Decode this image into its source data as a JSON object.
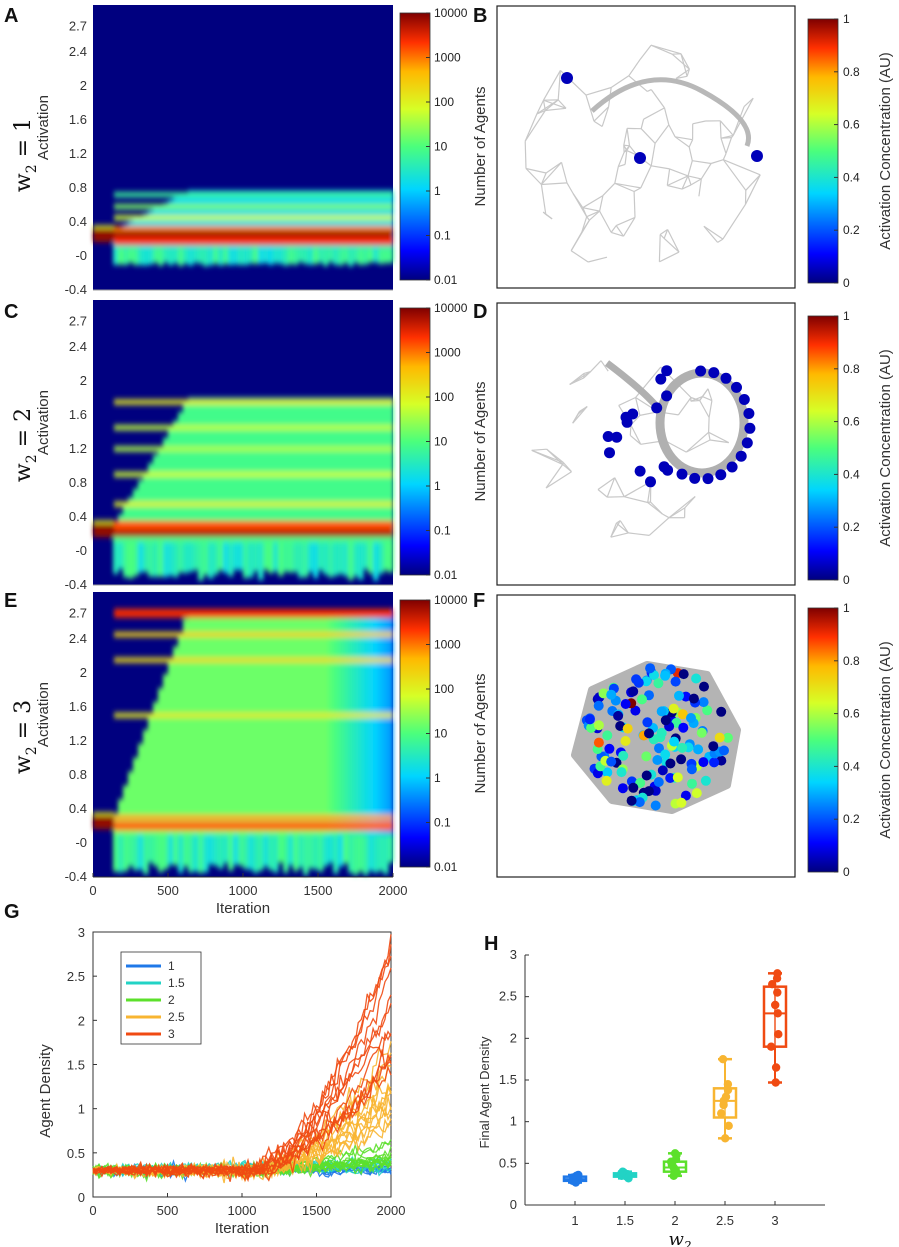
{
  "panels": {
    "A": "A",
    "B": "B",
    "C": "C",
    "D": "D",
    "E": "E",
    "F": "F",
    "G": "G",
    "H": "H"
  },
  "row_labels": [
    {
      "var": "w",
      "sub": "2",
      "value": " = 1"
    },
    {
      "var": "w",
      "sub": "2",
      "value": " = 2"
    },
    {
      "var": "w",
      "sub": "2",
      "value": " = 3"
    }
  ],
  "heatmap_ylabel": "Activation",
  "heatmap_xlabel": "Iteration",
  "heatmap_colorbar_label": "Number of Agents",
  "network_colorbar_label": "Activation Concentration (AU)",
  "chart_data": [
    {
      "panel": "A",
      "type": "heatmap",
      "ylabel": "Activation",
      "yticks": [
        "-0.4",
        "-0",
        "0.4",
        "0.8",
        "1.2",
        "1.6",
        "2",
        "2.4",
        "2.7"
      ],
      "ylim": [
        -0.4,
        2.95
      ],
      "xlim": [
        0,
        2000
      ],
      "colorbar": {
        "label": "Number of Agents",
        "scale": "log",
        "ticks": [
          "10000",
          "1000",
          "100",
          "10",
          "1",
          "0.1",
          "0.01"
        ]
      },
      "bands": [
        {
          "y": 0.25,
          "level": 4.0
        },
        {
          "y": 0.18,
          "level": 3.4
        },
        {
          "y": 0.32,
          "level": 3.0
        },
        {
          "y": 0.45,
          "level": 1.8
        },
        {
          "y": 0.58,
          "level": 1.3
        },
        {
          "y": 0.72,
          "level": 0.8
        }
      ]
    },
    {
      "panel": "C",
      "type": "heatmap",
      "ylabel": "Activation",
      "yticks": [
        "-0.4",
        "-0",
        "0.4",
        "0.8",
        "1.2",
        "1.6",
        "2",
        "2.4",
        "2.7"
      ],
      "ylim": [
        -0.4,
        2.95
      ],
      "xlim": [
        0,
        2000
      ],
      "colorbar": {
        "label": "Number of Agents",
        "scale": "log",
        "ticks": [
          "10000",
          "1000",
          "100",
          "10",
          "1",
          "0.1",
          "0.01"
        ]
      },
      "bands": [
        {
          "y": 0.22,
          "level": 3.8
        },
        {
          "y": 0.3,
          "level": 3.2
        },
        {
          "y": 0.55,
          "level": 2.0
        },
        {
          "y": 0.9,
          "level": 1.8
        },
        {
          "y": 1.2,
          "level": 1.6
        },
        {
          "y": 1.45,
          "level": 1.7
        },
        {
          "y": 1.75,
          "level": 2.1
        }
      ]
    },
    {
      "panel": "E",
      "type": "heatmap",
      "ylabel": "Activation",
      "xlabel": "Iteration",
      "yticks": [
        "-0.4",
        "-0",
        "0.4",
        "0.8",
        "1.2",
        "1.6",
        "2",
        "2.4",
        "2.7"
      ],
      "xticks": [
        "0",
        "500",
        "1000",
        "1500",
        "2000"
      ],
      "ylim": [
        -0.4,
        2.95
      ],
      "xlim": [
        0,
        2000
      ],
      "colorbar": {
        "label": "Number of Agents",
        "scale": "log",
        "ticks": [
          "10000",
          "1000",
          "100",
          "10",
          "1",
          "0.1",
          "0.01"
        ]
      },
      "bands": [
        {
          "y": 0.2,
          "level": 3.1
        },
        {
          "y": 0.3,
          "level": 2.8
        },
        {
          "y": 1.5,
          "level": 2.1
        },
        {
          "y": 2.15,
          "level": 2.3
        },
        {
          "y": 2.45,
          "level": 2.4
        },
        {
          "y": 2.7,
          "level": 3.4
        }
      ]
    },
    {
      "panel": "B",
      "type": "scatter",
      "description_only": false,
      "colorbar": {
        "label": "Activation Concentration (AU)",
        "ticks": [
          "1",
          "0.8",
          "0.6",
          "0.4",
          "0.2",
          "0"
        ]
      },
      "agent_values": [
        0.05,
        0.05,
        0.05
      ]
    },
    {
      "panel": "D",
      "type": "scatter",
      "colorbar": {
        "label": "Activation Concentration (AU)",
        "ticks": [
          "1",
          "0.8",
          "0.6",
          "0.4",
          "0.2",
          "0"
        ]
      },
      "agent_values": [
        0.05,
        0.05,
        0.05,
        0.05,
        0.05,
        0.05,
        0.05,
        0.05,
        0.05,
        0.05,
        0.05,
        0.05,
        0.05,
        0.05,
        0.05,
        0.05,
        0.05,
        0.05,
        0.05,
        0.05,
        0.05,
        0.05,
        0.05,
        0.05,
        0.05,
        0.05,
        0.05,
        0.05
      ]
    },
    {
      "panel": "F",
      "type": "scatter",
      "colorbar": {
        "label": "Activation Concentration (AU)",
        "ticks": [
          "1",
          "0.8",
          "0.6",
          "0.4",
          "0.2",
          "0"
        ]
      },
      "agent_value_range": [
        0,
        1
      ]
    },
    {
      "panel": "G",
      "type": "line",
      "xlabel": "Iteration",
      "ylabel": "Agent Density",
      "xlim": [
        0,
        2000
      ],
      "ylim": [
        0,
        3
      ],
      "xticks": [
        "0",
        "500",
        "1000",
        "1500",
        "2000"
      ],
      "yticks": [
        "0",
        "0.5",
        "1",
        "1.5",
        "2",
        "2.5",
        "3"
      ],
      "legend_position": "top-left",
      "series": [
        {
          "name": "1",
          "color": "#1f78e8",
          "final_range": [
            0.28,
            0.35
          ]
        },
        {
          "name": "1.5",
          "color": "#22d3c5",
          "final_range": [
            0.32,
            0.4
          ]
        },
        {
          "name": "2",
          "color": "#5ce02b",
          "final_range": [
            0.38,
            0.62
          ]
        },
        {
          "name": "2.5",
          "color": "#f8b531",
          "final_range": [
            0.8,
            1.75
          ]
        },
        {
          "name": "3",
          "color": "#f04a12",
          "final_range": [
            1.45,
            2.9
          ]
        }
      ]
    },
    {
      "panel": "H",
      "type": "box",
      "xlabel_var": "w",
      "xlabel_sub": "2",
      "ylabel": "Final Agent Density",
      "ylim": [
        0,
        3
      ],
      "yticks": [
        "0",
        "0.5",
        "1",
        "1.5",
        "2",
        "2.5",
        "3"
      ],
      "categories": [
        "1",
        "1.5",
        "2",
        "2.5",
        "3"
      ],
      "colors": [
        "#1f78e8",
        "#22d3c5",
        "#5ce02b",
        "#f8b531",
        "#f04a12"
      ],
      "boxes": [
        {
          "min": 0.27,
          "q1": 0.29,
          "median": 0.31,
          "q3": 0.34,
          "max": 0.36,
          "points": [
            0.27,
            0.29,
            0.3,
            0.31,
            0.32,
            0.33,
            0.34,
            0.35,
            0.36
          ]
        },
        {
          "min": 0.32,
          "q1": 0.34,
          "median": 0.36,
          "q3": 0.38,
          "max": 0.4,
          "points": [
            0.32,
            0.34,
            0.35,
            0.36,
            0.37,
            0.38,
            0.39,
            0.4
          ]
        },
        {
          "min": 0.35,
          "q1": 0.4,
          "median": 0.45,
          "q3": 0.52,
          "max": 0.62,
          "points": [
            0.35,
            0.38,
            0.42,
            0.45,
            0.48,
            0.52,
            0.55,
            0.6,
            0.62
          ]
        },
        {
          "min": 0.8,
          "q1": 1.05,
          "median": 1.25,
          "q3": 1.4,
          "max": 1.75,
          "points": [
            0.8,
            0.95,
            1.1,
            1.2,
            1.25,
            1.3,
            1.38,
            1.45,
            1.75
          ]
        },
        {
          "min": 1.47,
          "q1": 1.9,
          "median": 2.3,
          "q3": 2.62,
          "max": 2.78,
          "points": [
            1.47,
            1.65,
            1.9,
            2.05,
            2.3,
            2.4,
            2.55,
            2.65,
            2.72,
            2.78
          ]
        }
      ]
    }
  ]
}
